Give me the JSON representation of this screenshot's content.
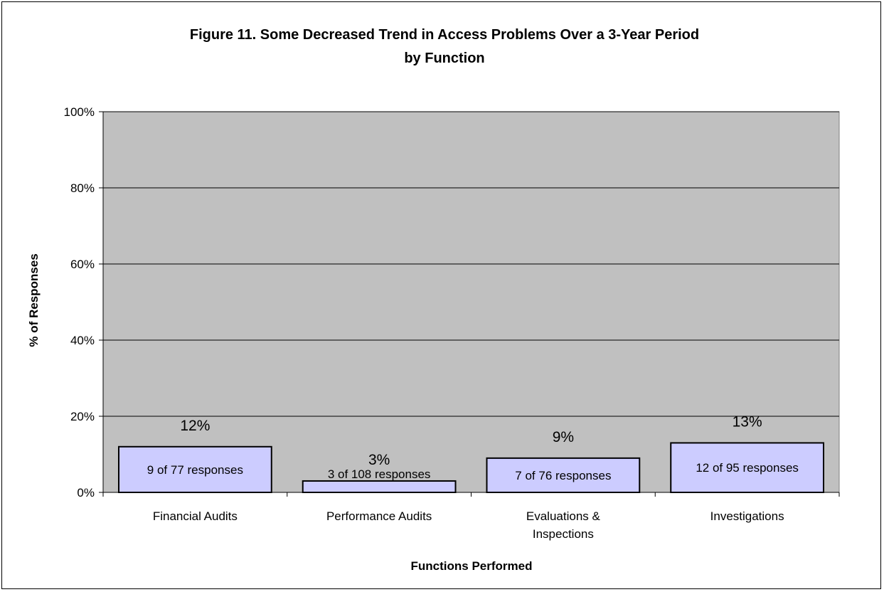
{
  "chart_data": {
    "type": "bar",
    "title": [
      "Figure 11.  Some Decreased Trend in Access Problems Over a 3-Year Period",
      "by Function"
    ],
    "xlabel": "Functions Performed",
    "ylabel": "% of Responses",
    "ylim": [
      0,
      100
    ],
    "yticks": [
      "0%",
      "20%",
      "40%",
      "60%",
      "80%",
      "100%"
    ],
    "ytick_values": [
      0,
      20,
      40,
      60,
      80,
      100
    ],
    "grid": true,
    "categories": [
      [
        "Financial Audits"
      ],
      [
        "Performance Audits"
      ],
      [
        "Evaluations &",
        "Inspections"
      ],
      [
        "Investigations"
      ]
    ],
    "values": [
      12,
      3,
      9,
      13
    ],
    "value_labels": [
      "12%",
      "3%",
      "9%",
      "13%"
    ],
    "bar_labels": [
      "9 of 77 responses",
      "3 of 108 responses",
      "7 of 76 responses",
      "12 of 95 responses"
    ],
    "colors": {
      "plot_background": "#c0c0c0",
      "bar_fill": "#ccccff",
      "bar_stroke": "#000000",
      "gridline": "#000000"
    }
  }
}
